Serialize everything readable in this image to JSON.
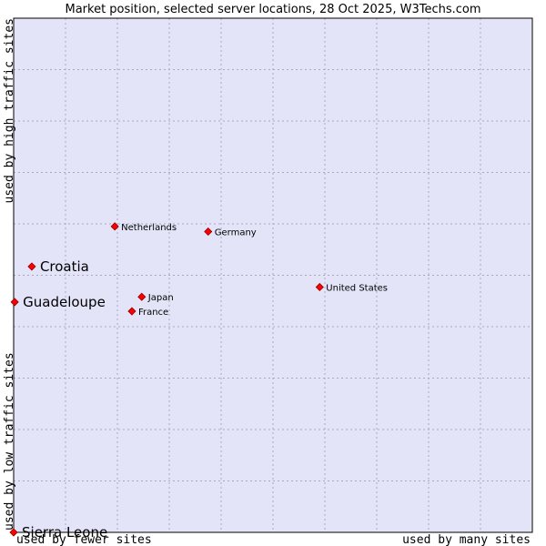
{
  "chart_data": {
    "type": "scatter",
    "title": "Market position, selected server locations, 28 Oct 2025, W3Techs.com",
    "xlabel_low": "used by fewer sites",
    "xlabel_high": "used by many sites",
    "ylabel_low": "used by low traffic sites",
    "ylabel_high": "used by high traffic sites",
    "xlim": [
      0,
      10
    ],
    "ylim": [
      0,
      10
    ],
    "grid": true,
    "points": [
      {
        "label": "Netherlands",
        "x": 1.95,
        "y": 5.95,
        "highlight": false
      },
      {
        "label": "Germany",
        "x": 3.75,
        "y": 5.85,
        "highlight": false
      },
      {
        "label": "Croatia",
        "x": 0.35,
        "y": 5.17,
        "highlight": true
      },
      {
        "label": "United States",
        "x": 5.9,
        "y": 4.77,
        "highlight": false
      },
      {
        "label": "Guadeloupe",
        "x": 0.02,
        "y": 4.48,
        "highlight": true
      },
      {
        "label": "Japan",
        "x": 2.47,
        "y": 4.58,
        "highlight": false
      },
      {
        "label": "France",
        "x": 2.28,
        "y": 4.3,
        "highlight": false
      },
      {
        "label": "Sierra Leone",
        "x": 0.0,
        "y": 0.0,
        "highlight": true
      }
    ]
  },
  "colors": {
    "plot_bg": "#e4e4f9",
    "grid": "#a8a8c0",
    "marker_fill": "#ff0000",
    "marker_stroke": "#8b0000"
  }
}
